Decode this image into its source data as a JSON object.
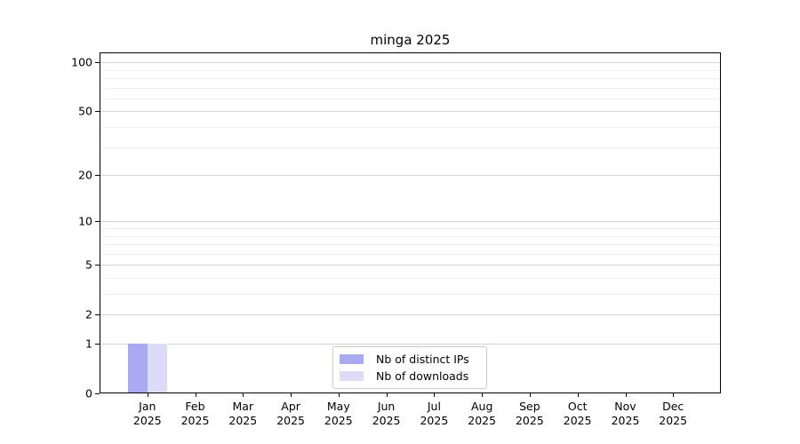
{
  "chart_data": {
    "type": "bar",
    "title": "minga 2025",
    "months": [
      "Jan",
      "Feb",
      "Mar",
      "Apr",
      "May",
      "Jun",
      "Jul",
      "Aug",
      "Sep",
      "Oct",
      "Nov",
      "Dec"
    ],
    "year": "2025",
    "series": [
      {
        "name": "Nb of distinct IPs",
        "color": "#aaaaf0",
        "values": [
          1,
          0,
          0,
          0,
          0,
          0,
          0,
          0,
          0,
          0,
          0,
          0
        ]
      },
      {
        "name": "Nb of downloads",
        "color": "#dcdcf8",
        "values": [
          1,
          0,
          0,
          0,
          0,
          0,
          0,
          0,
          0,
          0,
          0,
          0
        ]
      }
    ],
    "y_scale": "log10(value+1)",
    "y_ticks": [
      100,
      50,
      20,
      10,
      5,
      2,
      1,
      0
    ],
    "y_minor_ticks": [
      3,
      4,
      6,
      7,
      8,
      9,
      30,
      40,
      60,
      70,
      80,
      90
    ],
    "y_max": 115,
    "grid": "horizontal major+minor",
    "legend_position": "lower center"
  },
  "colors": {
    "grid_major": "#d4d4d4",
    "grid_minor": "#efefef",
    "axis": "#000000",
    "legend_border": "#cccccc",
    "background": "#ffffff"
  }
}
